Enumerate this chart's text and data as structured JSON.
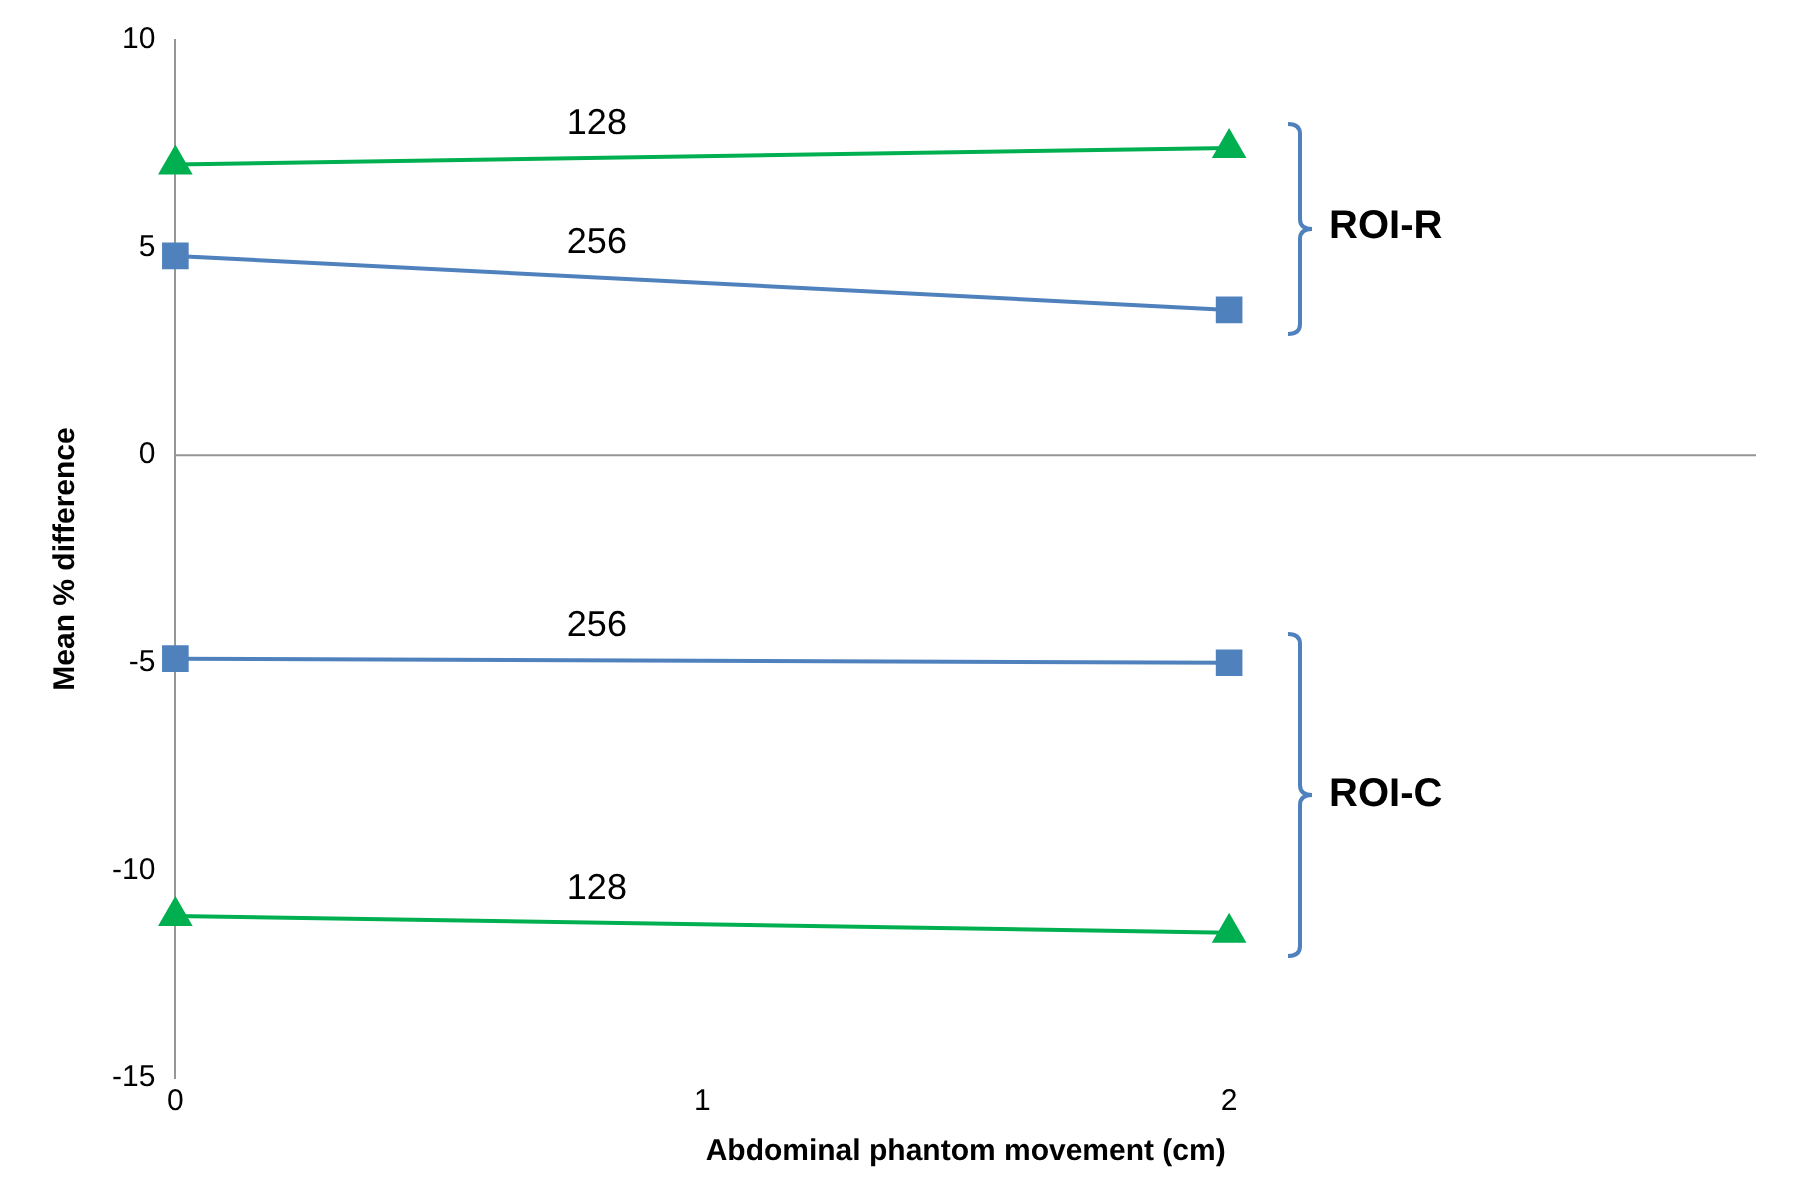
{
  "chart_data": {
    "type": "line",
    "xlabel": "Abdominal phantom movement (cm)",
    "ylabel": "Mean % difference",
    "xlim": [
      0,
      3
    ],
    "xticks": [
      0,
      1,
      2
    ],
    "ylim": [
      -15,
      10
    ],
    "yticks": [
      -15,
      -10,
      -5,
      0,
      5,
      10
    ],
    "grid": false,
    "legend": false,
    "ref_lines": [
      {
        "axis": "y",
        "value": 0,
        "color": "#969696"
      }
    ],
    "annotations": [
      "ROI-R",
      "ROI-C"
    ],
    "x": [
      0,
      2
    ],
    "series": [
      {
        "name": "128",
        "color": "#00b050",
        "marker": "triangle",
        "values": [
          7.0,
          7.4
        ]
      },
      {
        "name": "256",
        "color": "#4f81bd",
        "marker": "square",
        "values": [
          4.8,
          3.5
        ]
      },
      {
        "name": "256",
        "color": "#4f81bd",
        "marker": "square",
        "values": [
          -4.9,
          -5.0
        ]
      },
      {
        "name": "128",
        "color": "#00b050",
        "marker": "triangle",
        "values": [
          -11.1,
          -11.5
        ]
      }
    ]
  }
}
